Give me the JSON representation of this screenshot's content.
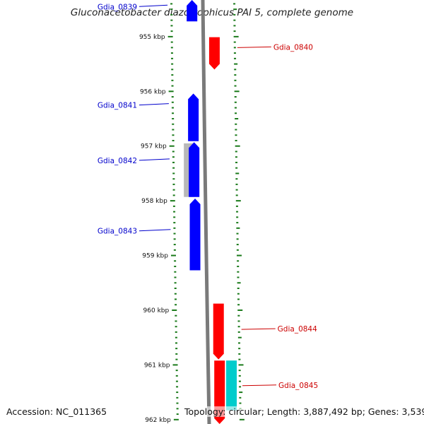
{
  "header": {
    "title": "Gluconacetobacter diazotrophicus PAI 5, complete genome"
  },
  "footer": {
    "accession": "Accession: NC_011365",
    "topology": "Topology: circular; Length: 3,887,492 bp; Genes: 3,539"
  },
  "axis": {
    "unit": "kbp",
    "ticks": [
      "955 kbp",
      "956 kbp",
      "957 kbp",
      "958 kbp",
      "959 kbp",
      "960 kbp",
      "961 kbp",
      "962 kbp"
    ],
    "tick_values_kbp": [
      955,
      956,
      957,
      958,
      959,
      960,
      961,
      962
    ],
    "view_range_kbp": [
      954.33,
      962.08
    ]
  },
  "colors": {
    "forward_strand": "#ff0000",
    "reverse_strand": "#0000ff",
    "backbone": "#7a7a7a",
    "tick_marks": "#1a7a1a",
    "gray_feature": "#b8b8b8",
    "cyan_feature": "#00cccc"
  },
  "genes": [
    {
      "name": "Gdia_0839",
      "strand": "reverse",
      "start_kbp": 954.33,
      "end_kbp": 954.72,
      "label_side": "left",
      "label_at_kbp": 954.45
    },
    {
      "name": "Gdia_0840",
      "strand": "forward",
      "start_kbp": 955.01,
      "end_kbp": 955.6,
      "label_side": "right",
      "label_at_kbp": 955.2
    },
    {
      "name": "Gdia_0841",
      "strand": "reverse",
      "start_kbp": 956.04,
      "end_kbp": 956.91,
      "label_side": "left",
      "label_at_kbp": 956.25
    },
    {
      "name": "Gdia_0842",
      "strand": "reverse",
      "start_kbp": 956.93,
      "end_kbp": 957.93,
      "label_side": "left",
      "label_at_kbp": 957.26
    },
    {
      "name": "Gdia_0843",
      "strand": "reverse",
      "start_kbp": 957.96,
      "end_kbp": 959.27,
      "label_side": "left",
      "label_at_kbp": 958.55
    },
    {
      "name": "Gdia_0844",
      "strand": "forward",
      "start_kbp": 959.88,
      "end_kbp": 960.9,
      "label_side": "right",
      "label_at_kbp": 960.35
    },
    {
      "name": "Gdia_0845",
      "strand": "forward",
      "start_kbp": 960.92,
      "end_kbp": 962.08,
      "label_side": "right",
      "label_at_kbp": 961.38
    }
  ],
  "features": [
    {
      "type": "gray",
      "start_kbp": 956.95,
      "end_kbp": 957.93
    },
    {
      "type": "cyan",
      "start_kbp": 960.92,
      "end_kbp": 961.83
    }
  ]
}
